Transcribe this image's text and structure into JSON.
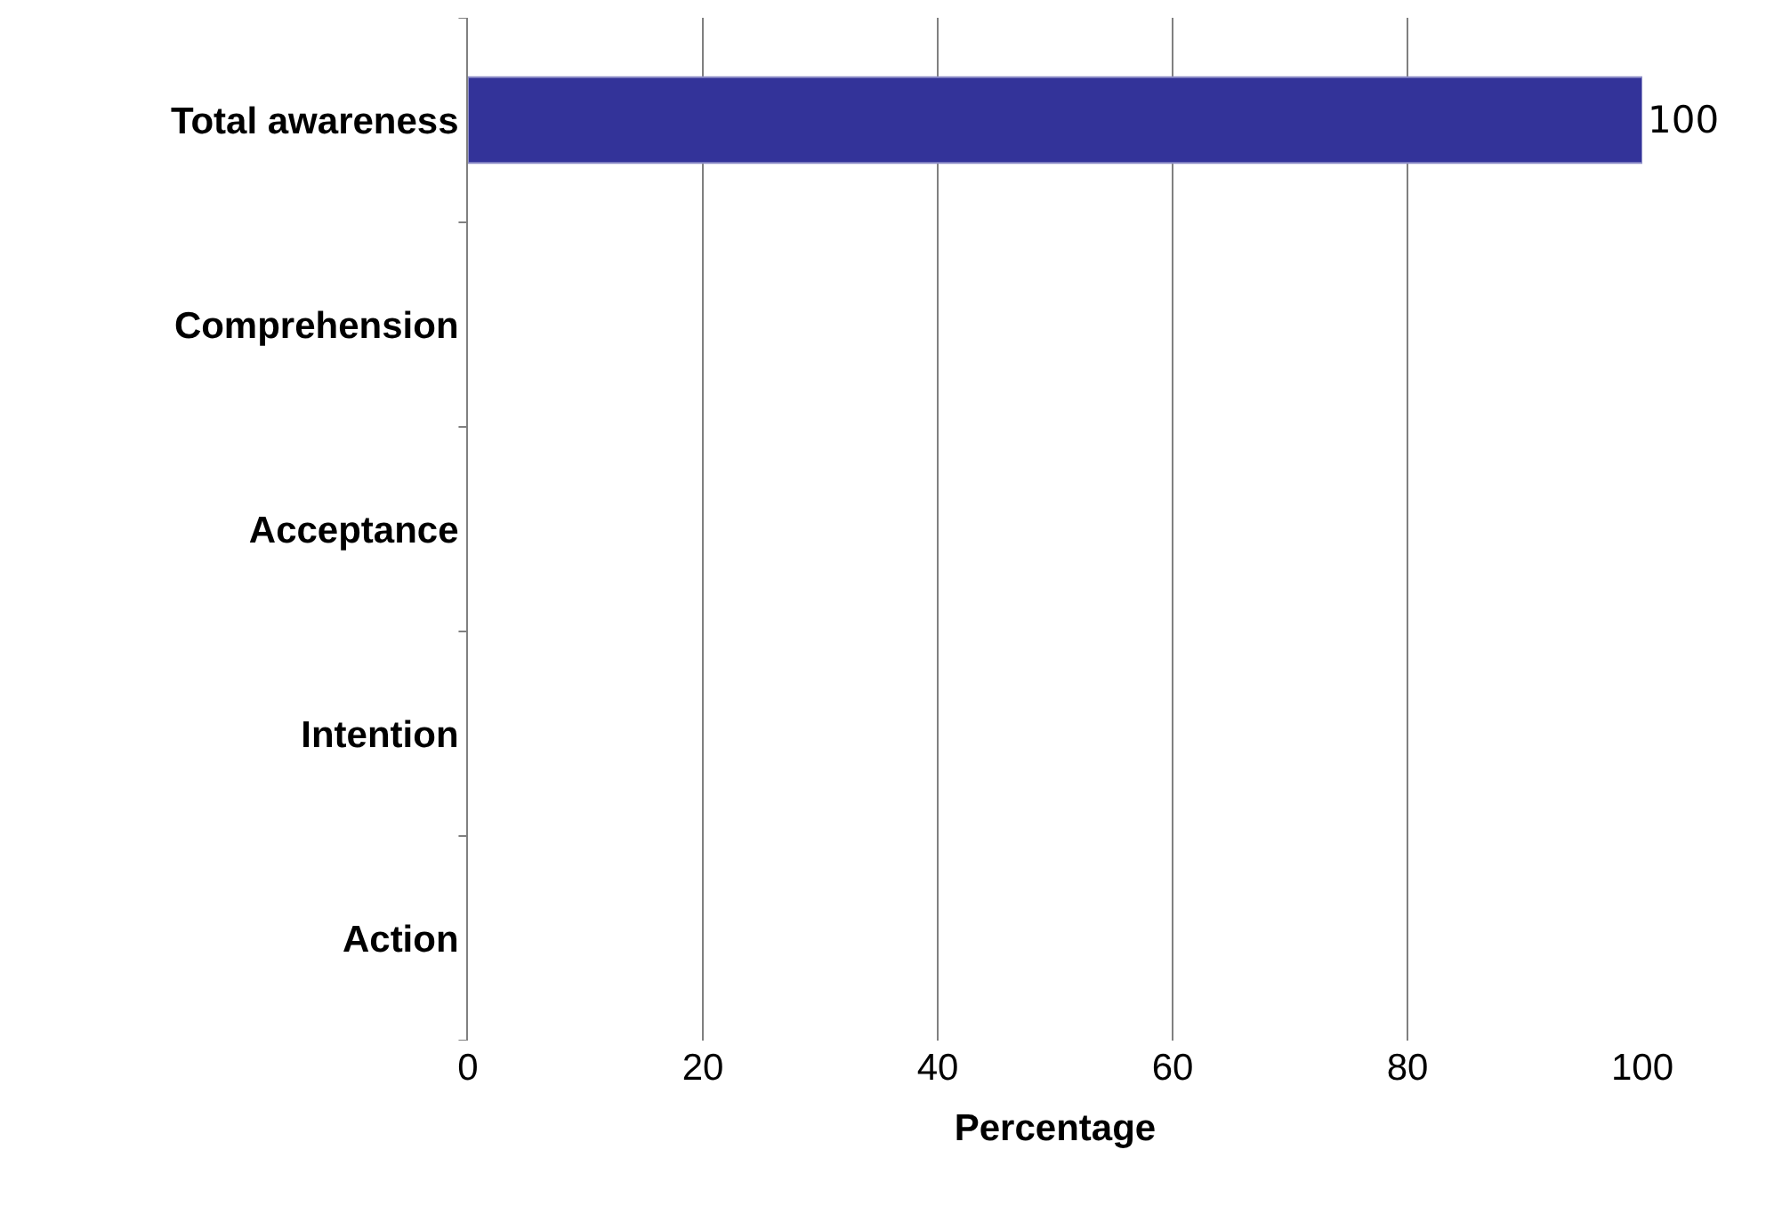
{
  "chart_data": {
    "type": "bar",
    "orientation": "horizontal",
    "xlabel": "Percentage",
    "categories": [
      "Total awareness",
      "Comprehension",
      "Acceptance",
      "Intention",
      "Action"
    ],
    "values": [
      100,
      null,
      null,
      null,
      null
    ],
    "color": "#333399",
    "value_labels": [
      "100",
      null,
      null,
      null,
      null
    ],
    "xlim": [
      0,
      100
    ],
    "xticks": [
      0,
      20,
      40,
      60,
      80,
      100
    ],
    "grid": "x",
    "legend": false
  }
}
